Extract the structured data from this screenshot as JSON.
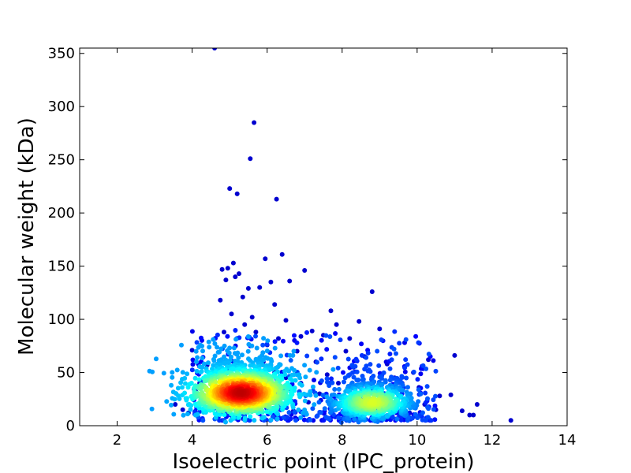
{
  "chart_data": {
    "type": "scatter",
    "title": "",
    "xlabel": "Isoelectric point (IPC_protein)",
    "ylabel": "Molecular weight (kDa)",
    "xlim": [
      1,
      14
    ],
    "ylim": [
      0,
      355
    ],
    "x_ticks": [
      2,
      4,
      6,
      8,
      10,
      12,
      14
    ],
    "y_ticks": [
      0,
      50,
      100,
      150,
      200,
      250,
      300,
      350
    ],
    "x_tick_labels": [
      "2",
      "4",
      "6",
      "8",
      "10",
      "12",
      "14"
    ],
    "y_tick_labels": [
      "0",
      "50",
      "100",
      "150",
      "200",
      "250",
      "300",
      "350"
    ],
    "grid": false,
    "legend": "none",
    "color_scale": "density (jet): dark blue = low, red = high",
    "colors": {
      "low": "#0000aa",
      "mid_low": "#00aaff",
      "mid": "#44ffbb",
      "mid_high": "#ffee00",
      "high": "#ff3300",
      "peak": "#aa0000"
    },
    "density_clusters": [
      {
        "center_x": 5.3,
        "center_y": 31,
        "spread_x": 0.7,
        "spread_y": 11,
        "peak_color": "#aa0000"
      },
      {
        "center_x": 8.8,
        "center_y": 22,
        "spread_x": 0.6,
        "spread_y": 9,
        "peak_color": "#44ffbb"
      }
    ],
    "points": [
      [
        4.6,
        355
      ],
      [
        5.65,
        285
      ],
      [
        5.55,
        251
      ],
      [
        5.0,
        223
      ],
      [
        5.2,
        218
      ],
      [
        6.25,
        213
      ],
      [
        6.4,
        161
      ],
      [
        5.95,
        157
      ],
      [
        5.1,
        153
      ],
      [
        4.95,
        148
      ],
      [
        4.8,
        147
      ],
      [
        5.25,
        143
      ],
      [
        7.0,
        146
      ],
      [
        5.15,
        140
      ],
      [
        4.9,
        137
      ],
      [
        6.1,
        135
      ],
      [
        6.6,
        136
      ],
      [
        5.5,
        129
      ],
      [
        5.8,
        130
      ],
      [
        8.8,
        126
      ],
      [
        5.35,
        121
      ],
      [
        4.75,
        118
      ],
      [
        6.2,
        114
      ],
      [
        7.7,
        108
      ],
      [
        5.05,
        105
      ],
      [
        5.6,
        102
      ],
      [
        6.5,
        99
      ],
      [
        8.45,
        98
      ],
      [
        7.85,
        95
      ],
      [
        9.0,
        91
      ],
      [
        7.2,
        89
      ],
      [
        6.9,
        84
      ],
      [
        8.2,
        82
      ],
      [
        7.5,
        85
      ],
      [
        4.0,
        71
      ],
      [
        10.3,
        62
      ],
      [
        11.0,
        66
      ],
      [
        12.5,
        5
      ],
      [
        11.5,
        10
      ],
      [
        11.2,
        14
      ],
      [
        10.9,
        29
      ],
      [
        11.6,
        20
      ],
      [
        3.55,
        20
      ],
      [
        3.75,
        15
      ],
      [
        3.9,
        12
      ],
      [
        4.2,
        40
      ],
      [
        4.4,
        57
      ],
      [
        9.9,
        50
      ],
      [
        10.05,
        36
      ],
      [
        10.6,
        28
      ],
      [
        11.4,
        10
      ],
      [
        9.4,
        45
      ],
      [
        9.2,
        58
      ],
      [
        8.6,
        65
      ],
      [
        8.1,
        70
      ],
      [
        7.3,
        60
      ],
      [
        6.8,
        70
      ],
      [
        6.3,
        82
      ],
      [
        5.4,
        95
      ],
      [
        4.85,
        88
      ],
      [
        5.7,
        88
      ],
      [
        6.0,
        76
      ],
      [
        7.6,
        48
      ],
      [
        7.9,
        40
      ],
      [
        8.3,
        55
      ],
      [
        9.6,
        40
      ],
      [
        10.2,
        20
      ],
      [
        10.5,
        15
      ],
      [
        9.8,
        12
      ],
      [
        6.7,
        14
      ],
      [
        7.1,
        22
      ],
      [
        7.4,
        30
      ],
      [
        6.9,
        40
      ],
      [
        4.3,
        25
      ],
      [
        4.1,
        32
      ],
      [
        5.9,
        60
      ],
      [
        6.2,
        50
      ],
      [
        6.5,
        45
      ]
    ]
  }
}
